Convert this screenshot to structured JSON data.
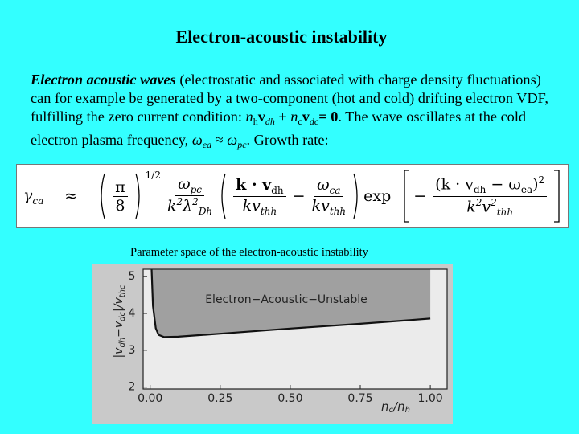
{
  "title": "Electron-acoustic instability",
  "paragraph": [
    {
      "text": "Electron acoustic waves",
      "style": "bi"
    },
    {
      "text": " (electrostatic and associated with charge density fluctuations) can for example be generated by a two-component (hot and cold) drifting electron VDF, fulfilling the zero current condition: ",
      "style": ""
    },
    {
      "text": "n",
      "style": "i"
    },
    {
      "text": "h",
      "style": "sub"
    },
    {
      "text": "v",
      "style": "b"
    },
    {
      "text": "dh",
      "style": "isub"
    },
    {
      "text": " + ",
      "style": ""
    },
    {
      "text": "n",
      "style": "i"
    },
    {
      "text": "c",
      "style": "sub"
    },
    {
      "text": "v",
      "style": "b"
    },
    {
      "text": "dc",
      "style": "isub"
    },
    {
      "text": "= 0",
      "style": "b"
    },
    {
      "text": ". The wave oscillates at the cold electron plasma frequency, ",
      "style": ""
    },
    {
      "text": "ω",
      "style": "i"
    },
    {
      "text": "ea",
      "style": "isub"
    },
    {
      "text": " ≈ ",
      "style": ""
    },
    {
      "text": "ω",
      "style": "i"
    },
    {
      "text": "pc",
      "style": "isub"
    },
    {
      "text": ". Growth rate:",
      "style": ""
    }
  ],
  "formula": {
    "lhs": "γ",
    "lhs_sub": "ca",
    "approx": "≈",
    "pi": "π",
    "eight": "8",
    "power": "1/2",
    "f1_num": "ω",
    "f1_num_sub": "pc",
    "f1_den": "k",
    "f1_den_sup": "2",
    "f1_den2": "λ",
    "f1_den2_sup": "2",
    "f1_den2_sub": "Dh",
    "f2_num": "k · v",
    "f2_num_sub": "dh",
    "f2_den": "kv",
    "f2_den_sub": "thh",
    "minus": "−",
    "f3_num": "ω",
    "f3_num_sub": "ca",
    "f3_den": "kv",
    "f3_den_sub": "thh",
    "exp": "exp",
    "neg": "−",
    "f4_num": "(k · v",
    "f4_num_sub": "dh",
    "f4_num2": " − ω",
    "f4_num2_sub": "ea",
    "f4_num3": ")",
    "f4_num_sup": "2",
    "f4_den": "k",
    "f4_den_sup": "2",
    "f4_den2": "v",
    "f4_den2_sup": "2",
    "f4_den2_sub": "thh"
  },
  "caption": "Parameter space of the electron-acoustic instability",
  "chart_data": {
    "type": "line",
    "x": [
      0.005,
      0.01,
      0.02,
      0.03,
      0.05,
      0.1,
      0.25,
      0.5,
      0.75,
      1.0
    ],
    "y": [
      5.2,
      4.2,
      3.6,
      3.42,
      3.36,
      3.37,
      3.45,
      3.59,
      3.72,
      3.86
    ],
    "color": "#111111",
    "fill": "#a0a0a0",
    "xlim": [
      -0.025,
      1.06
    ],
    "ylim": [
      1.95,
      5.2
    ],
    "xticks": [
      {
        "value": 0,
        "label": "0.00"
      },
      {
        "value": 0.25,
        "label": "0.25"
      },
      {
        "value": 0.5,
        "label": "0.50"
      },
      {
        "value": 0.75,
        "label": "0.75"
      },
      {
        "value": 1,
        "label": "1.00"
      }
    ],
    "yticks": [
      2,
      3,
      4,
      5
    ],
    "region_label": "Electron−Acoustic−Unstable",
    "x_label": [
      {
        "text": "n",
        "sub": false
      },
      {
        "text": "c",
        "sub": true
      },
      {
        "text": "/n",
        "sub": false
      },
      {
        "text": "h",
        "sub": true
      }
    ],
    "y_label": [
      {
        "text": "|v",
        "sub": false
      },
      {
        "text": "dh",
        "sub": true
      },
      {
        "text": "−v",
        "sub": false
      },
      {
        "text": "dc",
        "sub": true
      },
      {
        "text": "|/v",
        "sub": false
      },
      {
        "text": "thc",
        "sub": true
      }
    ]
  }
}
